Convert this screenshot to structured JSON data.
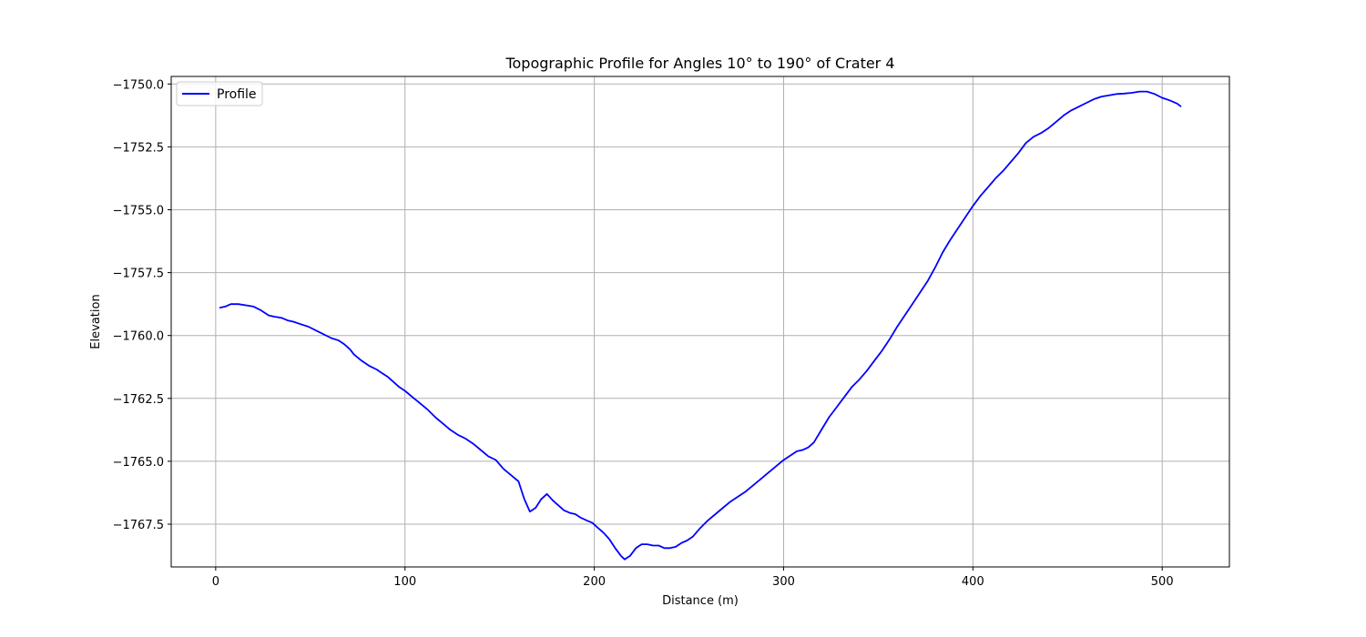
{
  "chart_data": {
    "type": "line",
    "title": "Topographic Profile for Angles 10° to 190° of Crater 4",
    "xlabel": "Distance (m)",
    "ylabel": "Elevation",
    "xlim": [
      -23.5,
      535.5
    ],
    "ylim": [
      -1769.2,
      -1749.7
    ],
    "x_ticks": [
      0,
      100,
      200,
      300,
      400,
      500
    ],
    "x_tick_labels": [
      "0",
      "100",
      "200",
      "300",
      "400",
      "500"
    ],
    "y_ticks": [
      -1750.0,
      -1752.5,
      -1755.0,
      -1757.5,
      -1760.0,
      -1762.5,
      -1765.0,
      -1767.5
    ],
    "y_tick_labels": [
      "−1750.0",
      "−1752.5",
      "−1755.0",
      "−1757.5",
      "−1760.0",
      "−1762.5",
      "−1765.0",
      "−1767.5"
    ],
    "grid": true,
    "legend_position": "top-left",
    "series": [
      {
        "name": "Profile",
        "color": "#0000ff",
        "x": [
          2,
          5,
          8,
          12,
          16,
          20,
          24,
          28,
          31,
          35,
          38,
          41,
          45,
          49,
          53,
          57,
          61,
          65,
          68,
          71,
          73,
          77,
          81,
          85,
          88,
          91,
          94,
          97,
          100,
          104,
          108,
          112,
          116,
          120,
          124,
          128,
          132,
          136,
          140,
          144,
          148,
          152,
          156,
          160,
          163,
          166,
          169,
          172,
          175,
          178,
          181,
          184,
          187,
          190,
          193,
          196,
          199,
          202,
          205,
          208,
          211,
          214,
          216,
          219,
          222,
          225,
          228,
          231,
          234,
          237,
          240,
          243,
          246,
          249,
          252,
          256,
          260,
          264,
          268,
          272,
          276,
          280,
          284,
          288,
          292,
          296,
          300,
          304,
          307,
          310,
          313,
          316,
          320,
          324,
          328,
          332,
          336,
          340,
          344,
          348,
          352,
          356,
          360,
          364,
          368,
          372,
          376,
          380,
          384,
          388,
          392,
          396,
          400,
          404,
          408,
          412,
          416,
          420,
          424,
          428,
          432,
          436,
          440,
          444,
          448,
          452,
          456,
          460,
          464,
          468,
          472,
          476,
          480,
          484,
          488,
          492,
          496,
          500,
          504,
          508,
          510
        ],
        "y": [
          -1758.9,
          -1758.85,
          -1758.75,
          -1758.75,
          -1758.8,
          -1758.85,
          -1759.0,
          -1759.2,
          -1759.25,
          -1759.3,
          -1759.4,
          -1759.45,
          -1759.55,
          -1759.65,
          -1759.8,
          -1759.95,
          -1760.1,
          -1760.2,
          -1760.35,
          -1760.55,
          -1760.75,
          -1761.0,
          -1761.2,
          -1761.35,
          -1761.5,
          -1761.65,
          -1761.85,
          -1762.05,
          -1762.2,
          -1762.45,
          -1762.7,
          -1762.95,
          -1763.25,
          -1763.5,
          -1763.75,
          -1763.95,
          -1764.1,
          -1764.3,
          -1764.55,
          -1764.8,
          -1764.95,
          -1765.3,
          -1765.55,
          -1765.8,
          -1766.5,
          -1767.0,
          -1766.85,
          -1766.5,
          -1766.3,
          -1766.55,
          -1766.75,
          -1766.95,
          -1767.05,
          -1767.1,
          -1767.25,
          -1767.35,
          -1767.45,
          -1767.65,
          -1767.85,
          -1768.1,
          -1768.45,
          -1768.75,
          -1768.9,
          -1768.75,
          -1768.45,
          -1768.3,
          -1768.3,
          -1768.35,
          -1768.35,
          -1768.45,
          -1768.45,
          -1768.4,
          -1768.25,
          -1768.15,
          -1768.0,
          -1767.65,
          -1767.35,
          -1767.1,
          -1766.85,
          -1766.6,
          -1766.4,
          -1766.2,
          -1765.95,
          -1765.7,
          -1765.45,
          -1765.2,
          -1764.95,
          -1764.75,
          -1764.6,
          -1764.55,
          -1764.45,
          -1764.25,
          -1763.75,
          -1763.25,
          -1762.85,
          -1762.45,
          -1762.05,
          -1761.75,
          -1761.4,
          -1761.0,
          -1760.6,
          -1760.15,
          -1759.65,
          -1759.2,
          -1758.75,
          -1758.3,
          -1757.85,
          -1757.3,
          -1756.7,
          -1756.2,
          -1755.75,
          -1755.3,
          -1754.85,
          -1754.45,
          -1754.1,
          -1753.75,
          -1753.45,
          -1753.1,
          -1752.75,
          -1752.35,
          -1752.1,
          -1751.95,
          -1751.75,
          -1751.5,
          -1751.25,
          -1751.05,
          -1750.9,
          -1750.75,
          -1750.6,
          -1750.5,
          -1750.45,
          -1750.4,
          -1750.38,
          -1750.35,
          -1750.3,
          -1750.3,
          -1750.4,
          -1750.55,
          -1750.65,
          -1750.78,
          -1750.9
        ]
      }
    ]
  }
}
